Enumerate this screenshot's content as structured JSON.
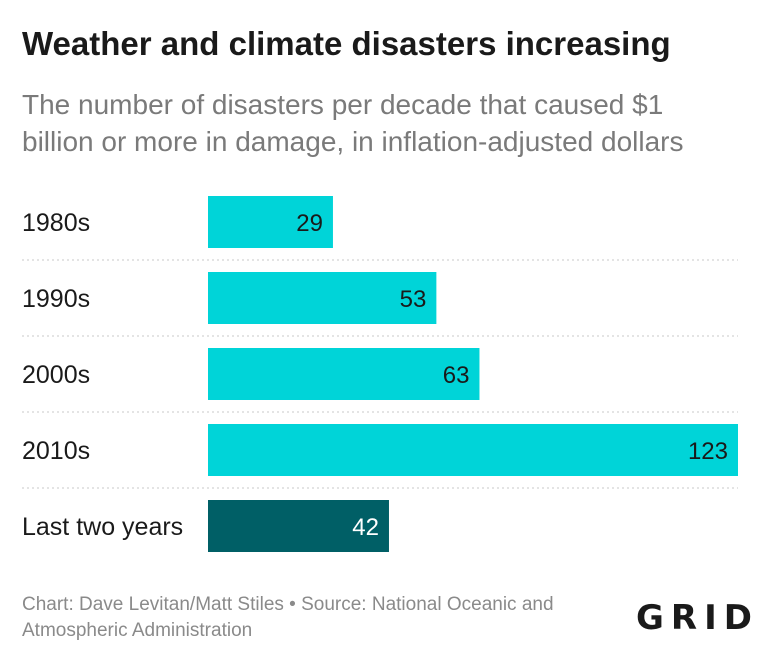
{
  "header": {
    "title": "Weather and climate disasters increasing",
    "subtitle": "The number of disasters per decade that caused $1 billion or more in damage, in inflation-adjusted dollars"
  },
  "chart_data": {
    "type": "bar",
    "orientation": "horizontal",
    "categories": [
      "1980s",
      "1990s",
      "2000s",
      "2010s",
      "Last two years"
    ],
    "values": [
      29,
      53,
      63,
      123,
      42
    ],
    "colors": [
      "#00d4d8",
      "#00d4d8",
      "#00d4d8",
      "#00d4d8",
      "#005f66"
    ],
    "label_colors": [
      "#1a1a1a",
      "#1a1a1a",
      "#1a1a1a",
      "#1a1a1a",
      "#ffffff"
    ],
    "xlim": [
      0,
      123
    ],
    "grid": false,
    "separator_lines": "dotted"
  },
  "footer": {
    "credit": "Chart: Dave Levitan/Matt Stiles • Source: National Oceanic and Atmospheric Administration",
    "logo": "GRID"
  }
}
